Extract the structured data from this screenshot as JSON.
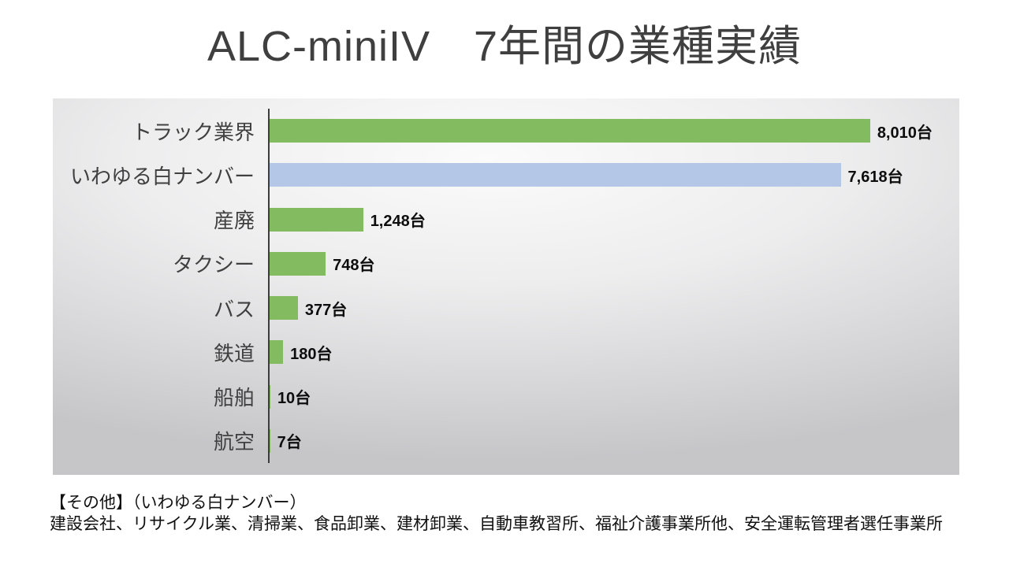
{
  "slide": {
    "title": "ALC-miniIV　7年間の業種実績",
    "footnote_line1": "【その他】（いわゆる白ナンバー）",
    "footnote_line2": "建設会社、リサイクル業、清掃業、食品卸業、建材卸業、自動車教習所、福祉介護事業所他、安全運転管理者選任事業所"
  },
  "chart_data": {
    "type": "bar",
    "orientation": "horizontal",
    "title": "ALC-miniIV　7年間の業種実績",
    "categories": [
      "トラック業界",
      "いわゆる白ナンバー",
      "産廃",
      "タクシー",
      "バス",
      "鉄道",
      "船舶",
      "航空"
    ],
    "values": [
      8010,
      7618,
      1248,
      748,
      377,
      180,
      10,
      7
    ],
    "data_labels": [
      "8,010台",
      "7,618台",
      "1,248台",
      "748台",
      "377台",
      "180台",
      "10台",
      "7台"
    ],
    "unit": "台",
    "xlim": [
      0,
      9200
    ],
    "grid": false,
    "legend": false,
    "axis_color": "#3c3c3c",
    "default_bar_color": "#83BB61",
    "highlight": {
      "category": "いわゆる白ナンバー",
      "color": "#B4C7E7"
    },
    "bar_colors": [
      "#83BB61",
      "#B4C7E7",
      "#83BB61",
      "#83BB61",
      "#83BB61",
      "#83BB61",
      "#83BB61",
      "#83BB61"
    ]
  }
}
